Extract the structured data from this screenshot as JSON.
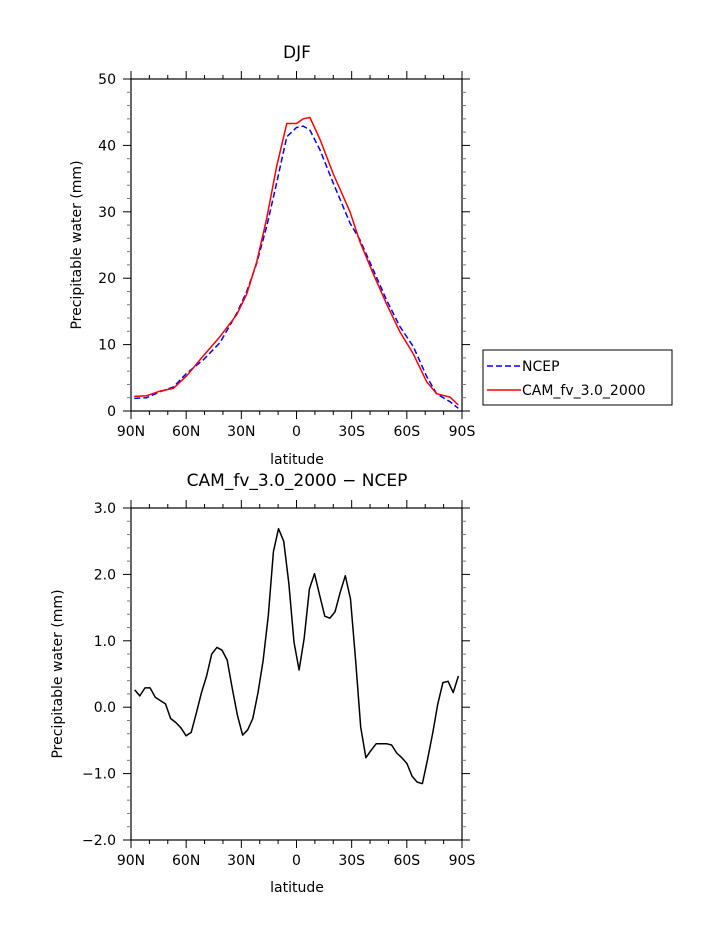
{
  "chart_data": [
    {
      "type": "line",
      "title": "DJF",
      "xlabel": "latitude",
      "ylabel": "Precipitable water (mm)",
      "xlim": [
        90,
        -90
      ],
      "ylim": [
        0,
        50
      ],
      "xticks": [
        90,
        60,
        30,
        0,
        -30,
        -60,
        -90
      ],
      "xtick_labels": [
        "90N",
        "60N",
        "30N",
        "0",
        "30S",
        "60S",
        "90S"
      ],
      "yticks": [
        0,
        10,
        20,
        30,
        40,
        50
      ],
      "ytick_labels": [
        "0",
        "10",
        "20",
        "30",
        "40",
        "50"
      ],
      "grid": false,
      "legend_position": "right-outside",
      "series": [
        {
          "name": "NCEP",
          "color": "#0000ff",
          "style": "dashed",
          "x": [
            88.2,
            81.5,
            74.2,
            67.0,
            59.7,
            50.7,
            41.6,
            32.5,
            27.1,
            21.7,
            16.2,
            10.8,
            5.3,
            0,
            -3.7,
            -7.3,
            -12.8,
            -20.0,
            -29.1,
            -34.5,
            -41.8,
            -49.0,
            -56.3,
            -63.5,
            -70.8,
            -76.2,
            -83.5,
            -88.0
          ],
          "values": [
            1.9,
            2.0,
            2.9,
            3.6,
            5.7,
            7.7,
            10.3,
            14.7,
            18.0,
            22.2,
            27.8,
            34.3,
            41.3,
            42.7,
            42.9,
            42.3,
            39.3,
            34.3,
            28.3,
            25.8,
            21.2,
            16.7,
            12.7,
            9.7,
            5.2,
            2.6,
            1.4,
            0.4
          ]
        },
        {
          "name": "CAM_fv_3.0_2000",
          "color": "#ff0000",
          "style": "solid",
          "x": [
            88.2,
            81.5,
            74.2,
            67.0,
            59.7,
            50.7,
            41.6,
            32.5,
            27.1,
            21.7,
            16.2,
            10.8,
            5.3,
            0,
            -3.7,
            -7.3,
            -12.8,
            -20.0,
            -29.1,
            -34.5,
            -41.8,
            -49.0,
            -56.3,
            -63.5,
            -70.8,
            -76.2,
            -83.5,
            -88.0
          ],
          "values": [
            2.2,
            2.3,
            3.0,
            3.4,
            5.3,
            8.3,
            11.2,
            14.5,
            17.6,
            22.4,
            29.0,
            36.8,
            43.3,
            43.3,
            44.0,
            44.2,
            40.9,
            35.7,
            30.0,
            25.5,
            20.6,
            16.1,
            11.9,
            8.6,
            4.4,
            2.6,
            2.1,
            0.9
          ]
        }
      ]
    },
    {
      "type": "line",
      "title": "CAM_fv_3.0_2000 − NCEP",
      "xlabel": "latitude",
      "ylabel": "Precipitable water (mm)",
      "xlim": [
        90,
        -90
      ],
      "ylim": [
        -2.0,
        3.0
      ],
      "xticks": [
        90,
        60,
        30,
        0,
        -30,
        -60,
        -90
      ],
      "xtick_labels": [
        "90N",
        "60N",
        "30N",
        "0",
        "30S",
        "60S",
        "90S"
      ],
      "yticks": [
        -2,
        -1,
        0,
        1,
        2,
        3
      ],
      "ytick_labels": [
        "−2.0",
        "−1.0",
        "0.0",
        "1.0",
        "2.0",
        "3.0"
      ],
      "grid": false,
      "series": [
        {
          "name": "difference",
          "color": "#000000",
          "style": "solid",
          "x_start": 88.0,
          "x_step": -2.794,
          "values": [
            0.26,
            0.17,
            0.29,
            0.29,
            0.15,
            0.1,
            0.05,
            -0.17,
            -0.23,
            -0.31,
            -0.43,
            -0.38,
            -0.09,
            0.22,
            0.47,
            0.8,
            0.9,
            0.86,
            0.71,
            0.28,
            -0.12,
            -0.42,
            -0.34,
            -0.17,
            0.22,
            0.7,
            1.38,
            2.34,
            2.69,
            2.5,
            1.87,
            0.98,
            0.56,
            1.04,
            1.78,
            2.01,
            1.69,
            1.37,
            1.34,
            1.44,
            1.73,
            1.98,
            1.63,
            0.71,
            -0.3,
            -0.76,
            -0.65,
            -0.55,
            -0.55,
            -0.55,
            -0.57,
            -0.69,
            -0.76,
            -0.85,
            -1.04,
            -1.13,
            -1.15,
            -0.79,
            -0.39,
            0.05,
            0.37,
            0.39,
            0.22,
            0.47
          ]
        }
      ]
    }
  ]
}
